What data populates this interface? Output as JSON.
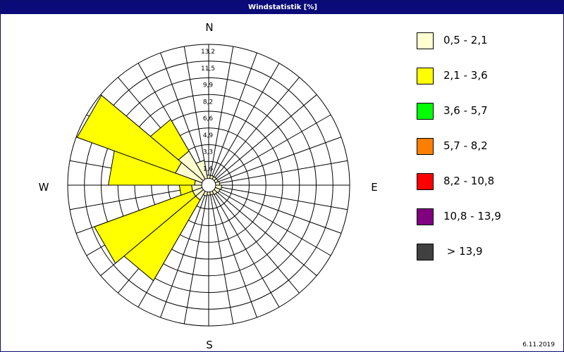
{
  "window": {
    "title": "Windstatistik [%]"
  },
  "footer": {
    "date": "6.11.2019"
  },
  "colors": {
    "frame": "#0a0a78",
    "grid": "#000000"
  },
  "chart_data": {
    "type": "wind-rose",
    "title": "Windstatistik [%]",
    "directions": {
      "north": "N",
      "east": "E",
      "south": "S",
      "west": "W"
    },
    "sector_count": 18,
    "sector_width_deg": 20,
    "radial_ticks": [
      "1,6",
      "3,3",
      "4,9",
      "6,6",
      "8,2",
      "9,9",
      "11,5",
      "13,2"
    ],
    "radial_max": 13.2,
    "speed_classes": [
      {
        "label": "0,5 - 2,1",
        "color": "#ffffd0"
      },
      {
        "label": "2,1 - 3,6",
        "color": "#ffff00"
      },
      {
        "label": "3,6 - 5,7",
        "color": "#00ff00"
      },
      {
        "label": "5,7 - 8,2",
        "color": "#ff8000"
      },
      {
        "label": "8,2 - 10,8",
        "color": "#ff0000"
      },
      {
        "label": "10,8 - 13,9",
        "color": "#800080"
      },
      {
        "label": " > 13,9",
        "color": "#404040"
      }
    ],
    "sectors": [
      {
        "direction_deg": 0,
        "values": [
          0.3,
          0.0
        ]
      },
      {
        "direction_deg": 20,
        "values": [
          0.3,
          0.0
        ]
      },
      {
        "direction_deg": 40,
        "values": [
          0.3,
          0.0
        ]
      },
      {
        "direction_deg": 60,
        "values": [
          0.3,
          0.0
        ]
      },
      {
        "direction_deg": 80,
        "values": [
          0.4,
          0.0
        ]
      },
      {
        "direction_deg": 100,
        "values": [
          0.6,
          0.0
        ]
      },
      {
        "direction_deg": 120,
        "values": [
          0.5,
          0.0
        ]
      },
      {
        "direction_deg": 140,
        "values": [
          0.4,
          0.0
        ]
      },
      {
        "direction_deg": 160,
        "values": [
          0.3,
          0.0
        ]
      },
      {
        "direction_deg": 180,
        "values": [
          0.3,
          0.0
        ]
      },
      {
        "direction_deg": 200,
        "values": [
          0.4,
          0.0
        ]
      },
      {
        "direction_deg": 220,
        "values": [
          1.0,
          9.2
        ]
      },
      {
        "direction_deg": 240,
        "values": [
          1.0,
          10.3
        ]
      },
      {
        "direction_deg": 260,
        "values": [
          1.0,
          1.2
        ]
      },
      {
        "direction_deg": 280,
        "values": [
          0.7,
          8.5
        ]
      },
      {
        "direction_deg": 300,
        "values": [
          2.8,
          10.3
        ]
      },
      {
        "direction_deg": 320,
        "values": [
          3.2,
          3.6
        ]
      },
      {
        "direction_deg": 340,
        "values": [
          1.8,
          0.0
        ]
      }
    ]
  }
}
